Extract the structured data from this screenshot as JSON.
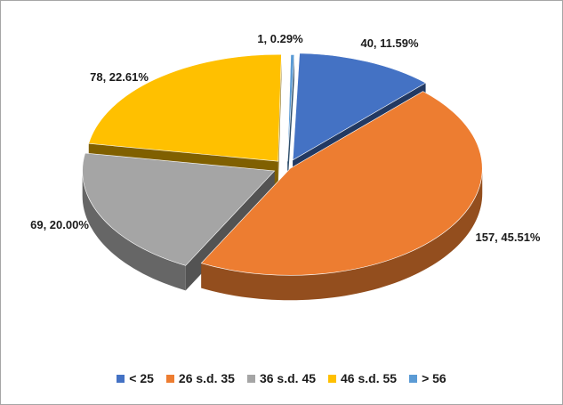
{
  "chart_data": {
    "type": "pie",
    "style": "3d-exploded",
    "title": "",
    "legend_position": "bottom",
    "slices": [
      {
        "label": "< 25",
        "value": 40,
        "percent": "11.59%",
        "color": "#4472c4"
      },
      {
        "label": "26 s.d. 35",
        "value": 157,
        "percent": "45.51%",
        "color": "#ed7d31"
      },
      {
        "label": "36 s.d. 45",
        "value": 69,
        "percent": "20.00%",
        "color": "#a5a5a5"
      },
      {
        "label": "46 s.d. 55",
        "value": 78,
        "percent": "22.61%",
        "color": "#ffc000"
      },
      {
        "label": "> 56",
        "value": 1,
        "percent": "0.29%",
        "color": "#5b9bd5"
      }
    ],
    "data_labels": [
      "40, 11.59%",
      "157, 45.51%",
      "69, 20.00%",
      "78, 22.61%",
      "1, 0.29%"
    ]
  }
}
